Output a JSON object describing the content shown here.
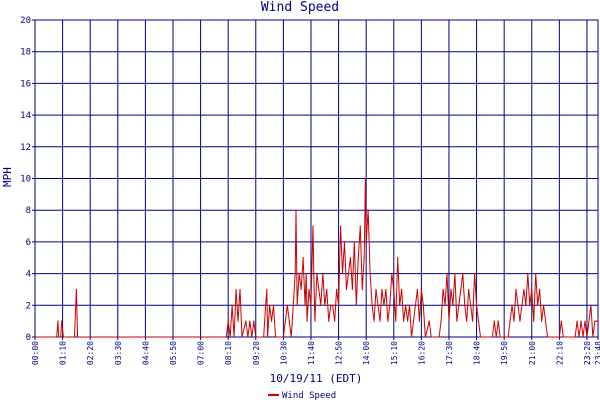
{
  "chart_data": {
    "type": "line",
    "title": "Wind Speed",
    "xlabel": "10/19/11 (EDT)",
    "ylabel": "MPH",
    "ylim": [
      0,
      20
    ],
    "grid": true,
    "legend": "bottom-left",
    "x_ticks": [
      "00:00",
      "01:10",
      "02:20",
      "03:30",
      "04:40",
      "05:50",
      "07:00",
      "08:10",
      "09:20",
      "10:30",
      "11:40",
      "12:50",
      "14:00",
      "15:10",
      "16:20",
      "17:30",
      "18:40",
      "19:50",
      "21:00",
      "22:10",
      "23:20",
      "23:48"
    ],
    "y_ticks": [
      "0",
      "2",
      "4",
      "6",
      "8",
      "10",
      "12",
      "14",
      "16",
      "18",
      "20"
    ],
    "series": [
      {
        "name": "Wind Speed",
        "color": "#cc0000",
        "points": [
          [
            "00:00",
            0
          ],
          [
            "00:55",
            0
          ],
          [
            "00:58",
            1
          ],
          [
            "01:00",
            0
          ],
          [
            "01:05",
            0
          ],
          [
            "01:08",
            1
          ],
          [
            "01:12",
            0
          ],
          [
            "01:40",
            0
          ],
          [
            "01:45",
            3
          ],
          [
            "01:48",
            0
          ],
          [
            "08:05",
            0
          ],
          [
            "08:10",
            1
          ],
          [
            "08:15",
            0
          ],
          [
            "08:20",
            2
          ],
          [
            "08:25",
            0
          ],
          [
            "08:30",
            3
          ],
          [
            "08:35",
            1
          ],
          [
            "08:40",
            3
          ],
          [
            "08:45",
            0
          ],
          [
            "08:55",
            1
          ],
          [
            "09:00",
            0
          ],
          [
            "09:05",
            1
          ],
          [
            "09:10",
            0
          ],
          [
            "09:15",
            1
          ],
          [
            "09:20",
            0
          ],
          [
            "09:40",
            0
          ],
          [
            "09:45",
            2
          ],
          [
            "09:48",
            3
          ],
          [
            "09:50",
            0
          ],
          [
            "09:55",
            2
          ],
          [
            "10:00",
            1
          ],
          [
            "10:05",
            2
          ],
          [
            "10:10",
            0
          ],
          [
            "10:30",
            0
          ],
          [
            "10:35",
            1
          ],
          [
            "10:40",
            2
          ],
          [
            "10:45",
            1
          ],
          [
            "10:50",
            0
          ],
          [
            "10:55",
            2
          ],
          [
            "11:00",
            4
          ],
          [
            "11:02",
            8
          ],
          [
            "11:05",
            2
          ],
          [
            "11:10",
            4
          ],
          [
            "11:15",
            3
          ],
          [
            "11:20",
            5
          ],
          [
            "11:25",
            2
          ],
          [
            "11:28",
            4
          ],
          [
            "11:30",
            1
          ],
          [
            "11:35",
            3
          ],
          [
            "11:40",
            2
          ],
          [
            "11:45",
            7
          ],
          [
            "11:48",
            3
          ],
          [
            "11:50",
            1
          ],
          [
            "11:55",
            4
          ],
          [
            "12:00",
            3
          ],
          [
            "12:05",
            2
          ],
          [
            "12:10",
            4
          ],
          [
            "12:15",
            2
          ],
          [
            "12:20",
            3
          ],
          [
            "12:25",
            1
          ],
          [
            "12:30",
            2
          ],
          [
            "12:35",
            2
          ],
          [
            "12:40",
            1
          ],
          [
            "12:45",
            3
          ],
          [
            "12:50",
            2
          ],
          [
            "12:55",
            7
          ],
          [
            "13:00",
            4
          ],
          [
            "13:05",
            6
          ],
          [
            "13:10",
            3
          ],
          [
            "13:15",
            4
          ],
          [
            "13:20",
            5
          ],
          [
            "13:25",
            3
          ],
          [
            "13:30",
            6
          ],
          [
            "13:35",
            2
          ],
          [
            "13:40",
            5
          ],
          [
            "13:45",
            7
          ],
          [
            "13:50",
            3
          ],
          [
            "13:55",
            5
          ],
          [
            "13:58",
            10
          ],
          [
            "14:00",
            6
          ],
          [
            "14:05",
            8
          ],
          [
            "14:10",
            4
          ],
          [
            "14:15",
            2
          ],
          [
            "14:20",
            1
          ],
          [
            "14:25",
            3
          ],
          [
            "14:30",
            2
          ],
          [
            "14:35",
            1
          ],
          [
            "14:40",
            3
          ],
          [
            "14:45",
            2
          ],
          [
            "14:50",
            3
          ],
          [
            "14:55",
            1
          ],
          [
            "15:00",
            2
          ],
          [
            "15:05",
            4
          ],
          [
            "15:10",
            3
          ],
          [
            "15:15",
            1
          ],
          [
            "15:20",
            5
          ],
          [
            "15:25",
            2
          ],
          [
            "15:30",
            3
          ],
          [
            "15:35",
            1
          ],
          [
            "15:40",
            2
          ],
          [
            "15:45",
            1
          ],
          [
            "15:50",
            2
          ],
          [
            "15:55",
            0
          ],
          [
            "16:00",
            1
          ],
          [
            "16:05",
            2
          ],
          [
            "16:10",
            3
          ],
          [
            "16:15",
            1
          ],
          [
            "16:20",
            3
          ],
          [
            "16:25",
            2
          ],
          [
            "16:30",
            0
          ],
          [
            "16:40",
            1
          ],
          [
            "16:45",
            0
          ],
          [
            "17:05",
            0
          ],
          [
            "17:10",
            1
          ],
          [
            "17:15",
            3
          ],
          [
            "17:20",
            2
          ],
          [
            "17:25",
            4
          ],
          [
            "17:30",
            1
          ],
          [
            "17:35",
            3
          ],
          [
            "17:40",
            2
          ],
          [
            "17:45",
            4
          ],
          [
            "17:50",
            1
          ],
          [
            "17:55",
            2
          ],
          [
            "18:00",
            3
          ],
          [
            "18:05",
            4
          ],
          [
            "18:10",
            2
          ],
          [
            "18:15",
            1
          ],
          [
            "18:20",
            3
          ],
          [
            "18:25",
            2
          ],
          [
            "18:30",
            1
          ],
          [
            "18:35",
            4
          ],
          [
            "18:40",
            2
          ],
          [
            "18:45",
            1
          ],
          [
            "18:50",
            0
          ],
          [
            "19:20",
            0
          ],
          [
            "19:25",
            1
          ],
          [
            "19:30",
            0
          ],
          [
            "19:35",
            1
          ],
          [
            "19:40",
            0
          ],
          [
            "20:00",
            0
          ],
          [
            "20:05",
            1
          ],
          [
            "20:10",
            2
          ],
          [
            "20:15",
            1
          ],
          [
            "20:20",
            3
          ],
          [
            "20:25",
            2
          ],
          [
            "20:30",
            1
          ],
          [
            "20:35",
            2
          ],
          [
            "20:40",
            3
          ],
          [
            "20:45",
            2
          ],
          [
            "20:50",
            4
          ],
          [
            "20:55",
            2
          ],
          [
            "21:00",
            3
          ],
          [
            "21:05",
            1
          ],
          [
            "21:10",
            4
          ],
          [
            "21:15",
            2
          ],
          [
            "21:20",
            3
          ],
          [
            "21:25",
            1
          ],
          [
            "21:30",
            2
          ],
          [
            "21:35",
            1
          ],
          [
            "21:40",
            0
          ],
          [
            "22:10",
            0
          ],
          [
            "22:15",
            1
          ],
          [
            "22:20",
            0
          ],
          [
            "22:50",
            0
          ],
          [
            "22:55",
            1
          ],
          [
            "23:00",
            0
          ],
          [
            "23:05",
            1
          ],
          [
            "23:10",
            0
          ],
          [
            "23:15",
            1
          ],
          [
            "23:20",
            0
          ],
          [
            "23:30",
            2
          ],
          [
            "23:35",
            0
          ],
          [
            "23:40",
            1
          ],
          [
            "23:45",
            1
          ],
          [
            "23:48",
            1
          ]
        ]
      }
    ]
  },
  "colors": {
    "axis": "#000080",
    "grid": "#000080",
    "series": "#cc0000",
    "background": "#ffffff"
  }
}
